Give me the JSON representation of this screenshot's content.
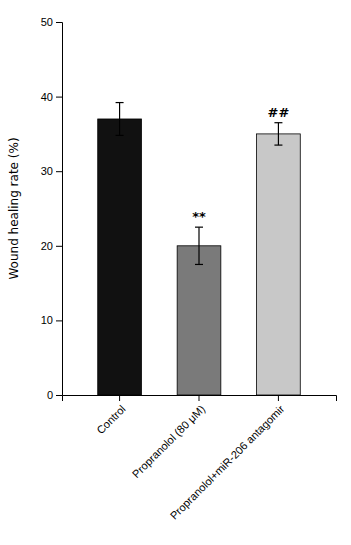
{
  "chart_data": {
    "type": "bar",
    "categories": [
      "Control",
      "Propranolol (80 μM)",
      "Propranolol+miR-206 antagomir"
    ],
    "values": [
      37.0,
      20.0,
      35.0
    ],
    "errors": [
      2.2,
      2.5,
      1.5
    ],
    "colors": [
      "#111111",
      "#7a7a7a",
      "#c8c8c8"
    ],
    "ylabel": "Wound healing rate (%)",
    "ylim": [
      0,
      50
    ],
    "yticks": [
      0,
      10,
      20,
      30,
      40,
      50
    ],
    "annotations": [
      {
        "category": "Propranolol (80 μM)",
        "text": "**"
      },
      {
        "category": "Propranolol+miR-206 antagomir",
        "text": "##"
      }
    ],
    "grid": false
  }
}
